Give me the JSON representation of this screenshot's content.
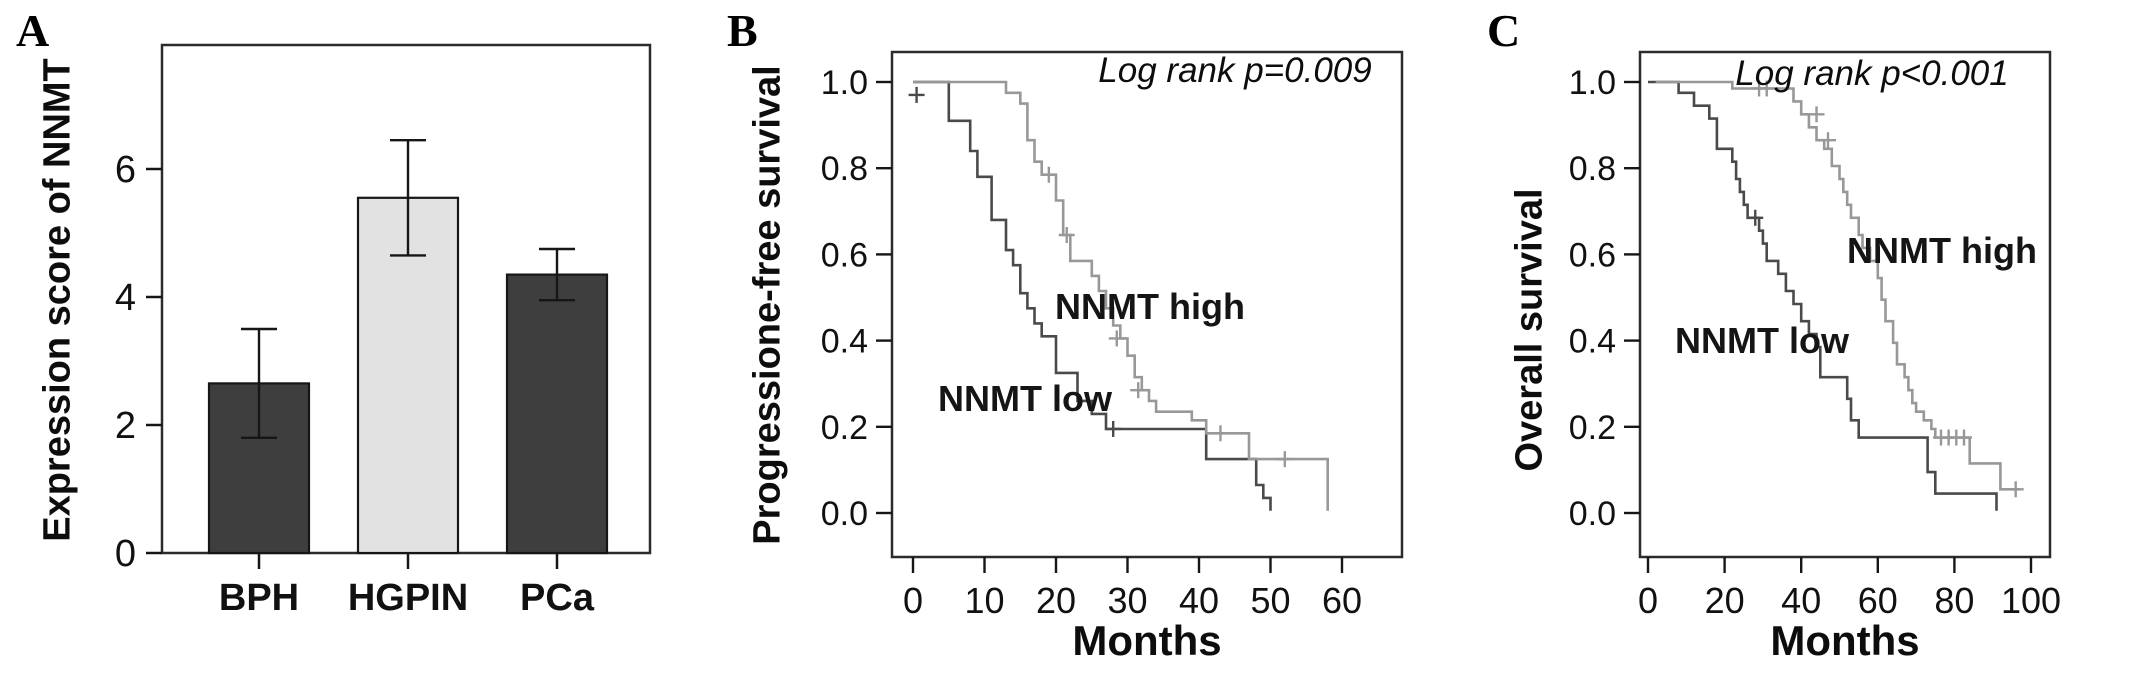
{
  "figure": {
    "letters": [
      "A",
      "B",
      "C"
    ]
  },
  "chart_data": [
    {
      "type": "bar",
      "panel": "A",
      "ylabel": "Expression score of NNMT",
      "xlabel": "",
      "categories": [
        "BPH",
        "HGPIN",
        "PCa"
      ],
      "values": [
        2.65,
        5.55,
        4.35
      ],
      "error_low": [
        1.8,
        4.65,
        3.95
      ],
      "error_high": [
        3.5,
        6.45,
        4.75
      ],
      "yticks": [
        0,
        2,
        4,
        6
      ],
      "ylim": [
        0,
        7.9
      ],
      "bar_colors": [
        "#3e3e3e",
        "#e2e2e2",
        "#3e3e3e"
      ],
      "bar_border_color": "#161616",
      "grid": false,
      "legend": "none"
    },
    {
      "type": "line",
      "subtype": "kaplan-meier-step",
      "panel": "B",
      "ylabel": "Progressione-free survival",
      "xlabel": "Months",
      "annotation": "Log rank p=0.009",
      "xticks": [
        0,
        10,
        20,
        30,
        40,
        50,
        60
      ],
      "yticks": [
        "0.0",
        "0.2",
        "0.4",
        "0.6",
        "0.8",
        "1.0"
      ],
      "xlim": [
        0,
        63
      ],
      "ylim": [
        0,
        1.05
      ],
      "grid": false,
      "legend": "inline-labels",
      "series": [
        {
          "name": "NNMT low",
          "color": "#4a4a4a",
          "points": [
            [
              0,
              1
            ],
            [
              5,
              1
            ],
            [
              5,
              0.91
            ],
            [
              8,
              0.91
            ],
            [
              8,
              0.84
            ],
            [
              9,
              0.84
            ],
            [
              9,
              0.78
            ],
            [
              11,
              0.78
            ],
            [
              11,
              0.68
            ],
            [
              13,
              0.68
            ],
            [
              13,
              0.61
            ],
            [
              14,
              0.61
            ],
            [
              14,
              0.575
            ],
            [
              15,
              0.575
            ],
            [
              15,
              0.51
            ],
            [
              16,
              0.51
            ],
            [
              16,
              0.475
            ],
            [
              17,
              0.475
            ],
            [
              17,
              0.44
            ],
            [
              18,
              0.44
            ],
            [
              18,
              0.41
            ],
            [
              20,
              0.41
            ],
            [
              20,
              0.325
            ],
            [
              23,
              0.325
            ],
            [
              23,
              0.26
            ],
            [
              25,
              0.26
            ],
            [
              25,
              0.23
            ],
            [
              27,
              0.23
            ],
            [
              27,
              0.195
            ],
            [
              41,
              0.195
            ],
            [
              41,
              0.125
            ],
            [
              48,
              0.125
            ],
            [
              48,
              0.065
            ],
            [
              49,
              0.065
            ],
            [
              49,
              0.035
            ],
            [
              50,
              0.035
            ],
            [
              50,
              0.005
            ]
          ],
          "censors": [
            [
              0.5,
              0.97
            ],
            [
              28,
              0.195
            ]
          ]
        },
        {
          "name": "NNMT high",
          "color": "#989898",
          "points": [
            [
              0,
              1
            ],
            [
              13,
              1
            ],
            [
              13,
              0.975
            ],
            [
              15,
              0.975
            ],
            [
              15,
              0.95
            ],
            [
              16,
              0.95
            ],
            [
              16,
              0.865
            ],
            [
              17,
              0.865
            ],
            [
              17,
              0.815
            ],
            [
              18,
              0.815
            ],
            [
              18,
              0.785
            ],
            [
              20,
              0.785
            ],
            [
              20,
              0.725
            ],
            [
              21,
              0.725
            ],
            [
              21,
              0.645
            ],
            [
              22,
              0.645
            ],
            [
              22,
              0.585
            ],
            [
              25,
              0.585
            ],
            [
              25,
              0.55
            ],
            [
              26,
              0.55
            ],
            [
              26,
              0.515
            ],
            [
              27,
              0.515
            ],
            [
              27,
              0.475
            ],
            [
              28,
              0.475
            ],
            [
              28,
              0.435
            ],
            [
              29,
              0.435
            ],
            [
              29,
              0.405
            ],
            [
              30,
              0.405
            ],
            [
              30,
              0.365
            ],
            [
              31,
              0.365
            ],
            [
              31,
              0.315
            ],
            [
              32,
              0.315
            ],
            [
              32,
              0.285
            ],
            [
              33,
              0.285
            ],
            [
              33,
              0.26
            ],
            [
              34,
              0.26
            ],
            [
              34,
              0.235
            ],
            [
              39,
              0.235
            ],
            [
              39,
              0.215
            ],
            [
              41,
              0.215
            ],
            [
              41,
              0.185
            ],
            [
              47,
              0.185
            ],
            [
              47,
              0.125
            ],
            [
              58,
              0.125
            ],
            [
              58,
              0.005
            ]
          ],
          "censors": [
            [
              19,
              0.785
            ],
            [
              21.5,
              0.645
            ],
            [
              28.5,
              0.405
            ],
            [
              31.5,
              0.285
            ],
            [
              43,
              0.185
            ],
            [
              52,
              0.125
            ]
          ]
        }
      ]
    },
    {
      "type": "line",
      "subtype": "kaplan-meier-step",
      "panel": "C",
      "ylabel": "Overall survival",
      "xlabel": "Months",
      "annotation": "Log rank p<0.001",
      "xticks": [
        0,
        20,
        40,
        60,
        80,
        100
      ],
      "yticks": [
        "0.0",
        "0.2",
        "0.4",
        "0.6",
        "0.8",
        "1.0"
      ],
      "xlim": [
        0,
        105
      ],
      "ylim": [
        0,
        1.05
      ],
      "grid": false,
      "legend": "inline-labels",
      "series": [
        {
          "name": "NNMT low",
          "color": "#4a4a4a",
          "points": [
            [
              0,
              1
            ],
            [
              8,
              1
            ],
            [
              8,
              0.975
            ],
            [
              12,
              0.975
            ],
            [
              12,
              0.945
            ],
            [
              16,
              0.945
            ],
            [
              16,
              0.915
            ],
            [
              18,
              0.915
            ],
            [
              18,
              0.845
            ],
            [
              22,
              0.845
            ],
            [
              22,
              0.815
            ],
            [
              23,
              0.815
            ],
            [
              23,
              0.775
            ],
            [
              24,
              0.775
            ],
            [
              24,
              0.745
            ],
            [
              25,
              0.745
            ],
            [
              25,
              0.715
            ],
            [
              26,
              0.715
            ],
            [
              26,
              0.685
            ],
            [
              29,
              0.685
            ],
            [
              29,
              0.655
            ],
            [
              30,
              0.655
            ],
            [
              30,
              0.625
            ],
            [
              31,
              0.625
            ],
            [
              31,
              0.585
            ],
            [
              34,
              0.585
            ],
            [
              34,
              0.555
            ],
            [
              36,
              0.555
            ],
            [
              36,
              0.515
            ],
            [
              38,
              0.515
            ],
            [
              38,
              0.485
            ],
            [
              40,
              0.485
            ],
            [
              40,
              0.445
            ],
            [
              42,
              0.445
            ],
            [
              42,
              0.415
            ],
            [
              44,
              0.415
            ],
            [
              44,
              0.385
            ],
            [
              45,
              0.385
            ],
            [
              45,
              0.315
            ],
            [
              52,
              0.315
            ],
            [
              52,
              0.265
            ],
            [
              53,
              0.265
            ],
            [
              53,
              0.215
            ],
            [
              55,
              0.215
            ],
            [
              55,
              0.175
            ],
            [
              73,
              0.175
            ],
            [
              73,
              0.095
            ],
            [
              75,
              0.095
            ],
            [
              75,
              0.045
            ],
            [
              91,
              0.045
            ],
            [
              91,
              0.005
            ]
          ],
          "censors": [
            [
              28,
              0.685
            ]
          ]
        },
        {
          "name": "NNMT high",
          "color": "#989898",
          "points": [
            [
              2,
              1
            ],
            [
              22,
              1
            ],
            [
              22,
              0.985
            ],
            [
              38,
              0.985
            ],
            [
              38,
              0.955
            ],
            [
              40,
              0.955
            ],
            [
              40,
              0.925
            ],
            [
              42,
              0.925
            ],
            [
              42,
              0.895
            ],
            [
              44,
              0.895
            ],
            [
              44,
              0.865
            ],
            [
              46,
              0.865
            ],
            [
              46,
              0.845
            ],
            [
              48,
              0.845
            ],
            [
              48,
              0.805
            ],
            [
              50,
              0.805
            ],
            [
              50,
              0.775
            ],
            [
              51,
              0.775
            ],
            [
              51,
              0.745
            ],
            [
              52,
              0.745
            ],
            [
              52,
              0.715
            ],
            [
              53,
              0.715
            ],
            [
              53,
              0.685
            ],
            [
              55,
              0.685
            ],
            [
              55,
              0.645
            ],
            [
              56,
              0.645
            ],
            [
              56,
              0.615
            ],
            [
              58,
              0.615
            ],
            [
              58,
              0.585
            ],
            [
              60,
              0.585
            ],
            [
              60,
              0.545
            ],
            [
              61,
              0.545
            ],
            [
              61,
              0.495
            ],
            [
              62,
              0.495
            ],
            [
              62,
              0.445
            ],
            [
              64,
              0.445
            ],
            [
              64,
              0.395
            ],
            [
              65,
              0.395
            ],
            [
              65,
              0.345
            ],
            [
              67,
              0.345
            ],
            [
              67,
              0.315
            ],
            [
              68,
              0.315
            ],
            [
              68,
              0.285
            ],
            [
              69,
              0.285
            ],
            [
              69,
              0.255
            ],
            [
              70,
              0.255
            ],
            [
              70,
              0.235
            ],
            [
              72,
              0.235
            ],
            [
              72,
              0.215
            ],
            [
              74,
              0.215
            ],
            [
              74,
              0.195
            ],
            [
              75,
              0.195
            ],
            [
              75,
              0.175
            ],
            [
              84,
              0.175
            ],
            [
              84,
              0.115
            ],
            [
              92,
              0.115
            ],
            [
              92,
              0.055
            ],
            [
              97,
              0.055
            ]
          ],
          "censors": [
            [
              29,
              0.985
            ],
            [
              31,
              0.985
            ],
            [
              44,
              0.925
            ],
            [
              47,
              0.865
            ],
            [
              76.5,
              0.175
            ],
            [
              78.5,
              0.175
            ],
            [
              80.5,
              0.175
            ],
            [
              82.5,
              0.175
            ],
            [
              96,
              0.055
            ]
          ]
        }
      ]
    }
  ]
}
